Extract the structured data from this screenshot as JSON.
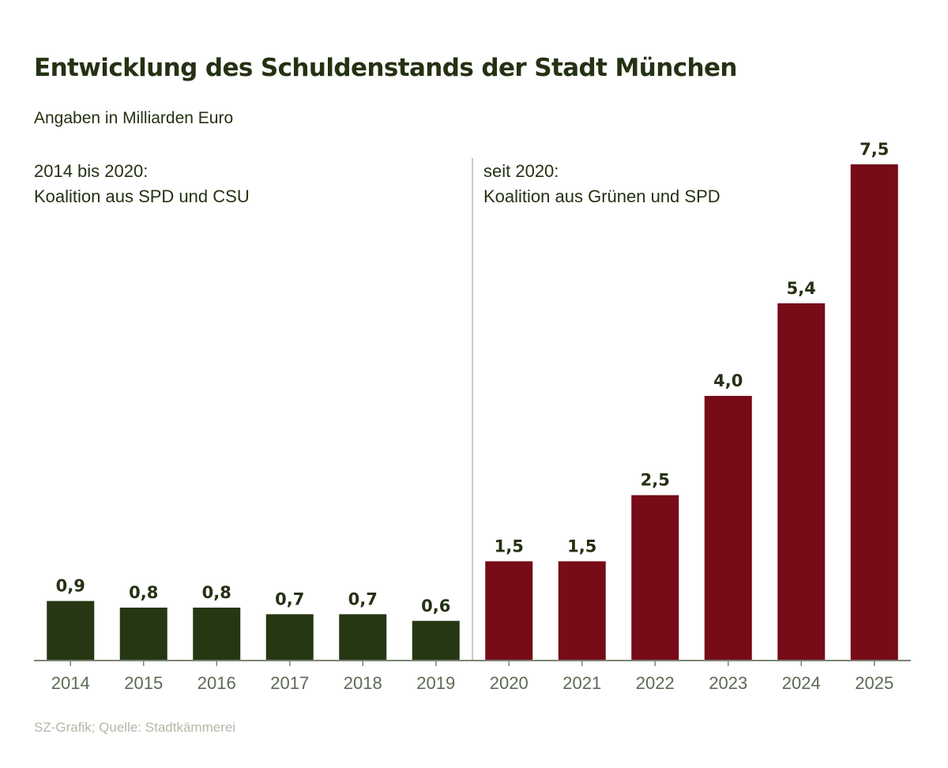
{
  "chart_data": {
    "type": "bar",
    "title": "Entwicklung des Schuldenstands der Stadt München",
    "subtitle": "Angaben in Milliarden Euro",
    "categories": [
      "2014",
      "2015",
      "2016",
      "2017",
      "2018",
      "2019",
      "2020",
      "2021",
      "2022",
      "2023",
      "2024",
      "2025"
    ],
    "values": [
      0.9,
      0.8,
      0.8,
      0.7,
      0.7,
      0.6,
      1.5,
      1.5,
      2.5,
      4.0,
      5.4,
      7.5
    ],
    "value_labels": [
      "0,9",
      "0,8",
      "0,8",
      "0,7",
      "0,7",
      "0,6",
      "1,5",
      "1,5",
      "2,5",
      "4,0",
      "5,4",
      "7,5"
    ],
    "ylim": [
      0,
      7.5
    ],
    "grid": false,
    "xlabel": "",
    "ylabel": "",
    "annotations": [
      {
        "line1": "2014 bis 2020:",
        "line2": "Koalition aus SPD und CSU"
      },
      {
        "line1": "seit 2020:",
        "line2": "Koalition aus Grünen und SPD"
      }
    ],
    "series_colors": [
      "#253713",
      "#770b17"
    ],
    "period_split_after": "2019",
    "source": "SZ-Grafik; Quelle: Stadtkämmerei"
  }
}
